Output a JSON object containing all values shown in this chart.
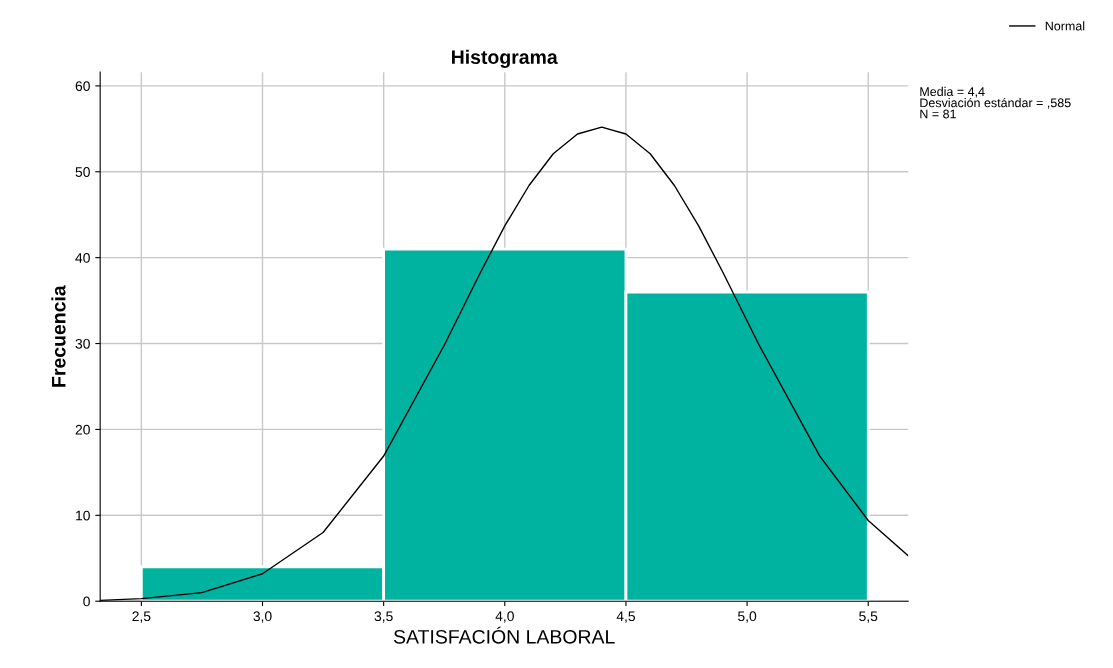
{
  "chart_data": {
    "type": "histogram",
    "title": "Histograma",
    "xlabel": "SATISFACIÓN LABORAL",
    "ylabel": "Frecuencia",
    "series": [
      {
        "bins": [
          2.5,
          3.5,
          4.5,
          5.5
        ],
        "values": [
          4,
          41,
          36
        ],
        "color": "#00b2a0"
      },
      {
        "type": "line",
        "name": "Normal",
        "color": "#000000",
        "x": [
          2.33,
          2.5,
          2.75,
          3.0,
          3.25,
          3.5,
          3.75,
          3.9,
          4.0,
          4.1,
          4.2,
          4.3,
          4.4,
          4.5,
          4.6,
          4.7,
          4.8,
          4.9,
          5.05,
          5.3,
          5.5,
          5.665
        ],
        "values": [
          0.1,
          0.3,
          1.0,
          3.2,
          8.0,
          16.9,
          29.8,
          38.3,
          43.7,
          48.4,
          52.1,
          54.4,
          55.2,
          54.4,
          52.1,
          48.4,
          43.7,
          38.3,
          29.8,
          16.9,
          9.4,
          5.3
        ]
      }
    ],
    "xlim": [
      2.33,
      5.665
    ],
    "ylim": [
      0,
      61.6
    ],
    "xticks": [
      {
        "value": 2.5,
        "label": "2,5"
      },
      {
        "value": 3.0,
        "label": "3,0"
      },
      {
        "value": 3.5,
        "label": "3,5"
      },
      {
        "value": 4.0,
        "label": "4,0"
      },
      {
        "value": 4.5,
        "label": "4,5"
      },
      {
        "value": 5.0,
        "label": "5,0"
      },
      {
        "value": 5.5,
        "label": "5,5"
      }
    ],
    "yticks": [
      0,
      10,
      20,
      30,
      40,
      50,
      60
    ],
    "grid": true,
    "legend": "top right",
    "line_style": "solid",
    "marker": "none",
    "annotations": [
      "Media = 4,4\nDesviación estándar = ,585\nN = 81"
    ]
  }
}
